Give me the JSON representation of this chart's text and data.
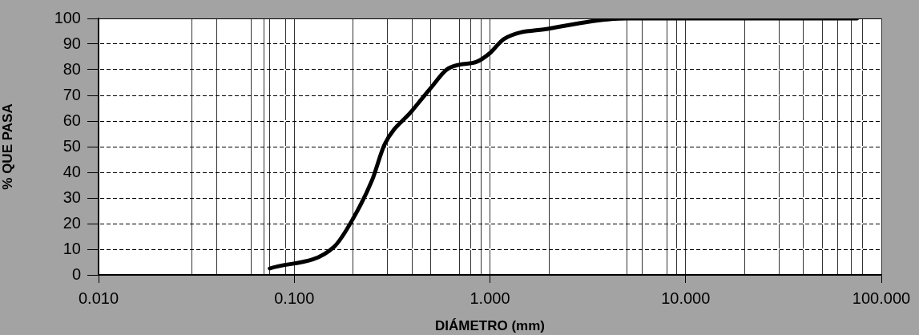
{
  "chart_data": {
    "type": "line",
    "xlabel": "DIÁMETRO (mm)",
    "ylabel": "% QUE PASA",
    "x": [
      0.075,
      0.16,
      0.2,
      0.25,
      0.29,
      0.4,
      0.5,
      0.6,
      0.7,
      0.85,
      1.0,
      1.18,
      2.0,
      5.0,
      6.0,
      75
    ],
    "series": [
      {
        "color": "#000000",
        "values": [
          2.5,
          11,
          22,
          37,
          51,
          64,
          73,
          80,
          82,
          83,
          86.5,
          92,
          96,
          100,
          100,
          100
        ]
      }
    ],
    "log": "x",
    "xlim": [
      0.01,
      100
    ],
    "xticks": [
      {
        "value": 0.01,
        "label": "0.010"
      },
      {
        "value": 0.03,
        "label": null
      },
      {
        "value": 0.04,
        "label": null
      },
      {
        "value": 0.06,
        "label": null
      },
      {
        "value": 0.07,
        "label": null
      },
      {
        "value": 0.075,
        "label": null
      },
      {
        "value": 0.09,
        "label": null
      },
      {
        "value": 0.1,
        "label": "0.100"
      },
      {
        "value": 0.2,
        "label": null
      },
      {
        "value": 0.3,
        "label": null
      },
      {
        "value": 0.4,
        "label": null
      },
      {
        "value": 0.5,
        "label": null
      },
      {
        "value": 0.7,
        "label": null
      },
      {
        "value": 0.8,
        "label": null
      },
      {
        "value": 0.9,
        "label": null
      },
      {
        "value": 1,
        "label": "1.000"
      },
      {
        "value": 2,
        "label": null
      },
      {
        "value": 5,
        "label": null
      },
      {
        "value": 6,
        "label": null
      },
      {
        "value": 8,
        "label": null
      },
      {
        "value": 9,
        "label": null
      },
      {
        "value": 10,
        "label": "10.000"
      },
      {
        "value": 20,
        "label": null
      },
      {
        "value": 30,
        "label": null
      },
      {
        "value": 40,
        "label": null
      },
      {
        "value": 50,
        "label": null
      },
      {
        "value": 60,
        "label": null
      },
      {
        "value": 70,
        "label": null
      },
      {
        "value": 80,
        "label": null
      },
      {
        "value": 100,
        "label": "100.000"
      }
    ],
    "ylim": [
      0,
      100
    ],
    "yticks": [
      0,
      10,
      20,
      30,
      40,
      50,
      60,
      70,
      80,
      90,
      100
    ],
    "grid": true,
    "legend": false,
    "marker": "none",
    "line_style": "solid"
  }
}
